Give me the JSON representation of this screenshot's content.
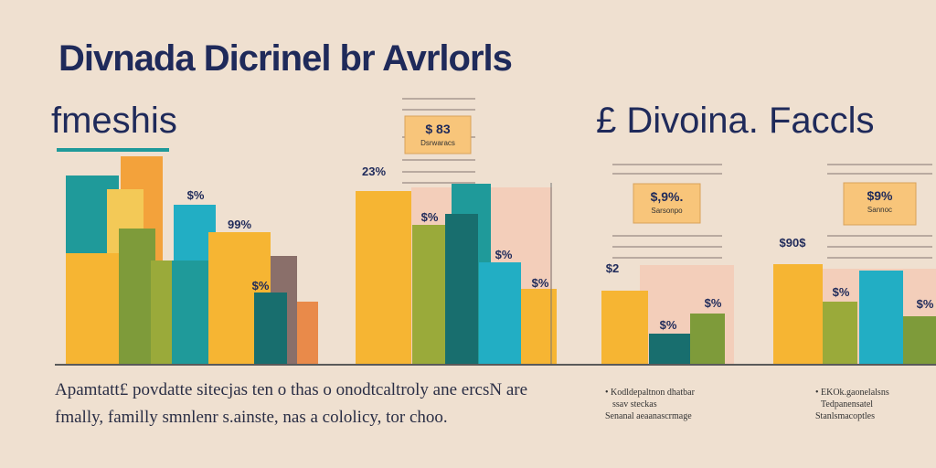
{
  "header": {
    "title": "Divnada Dicrinel br Avrlorls",
    "subtitle_left": "fmeshis",
    "subtitle_right": "£ Divoina. Faccls"
  },
  "description": [
    "Apamtatt£ povdatte sitecjas ten o thas o onodtcaltroly ane ercsN are",
    "fmally, familly smnlenr s.ainste, nas a cololicy, tor choo."
  ],
  "legends": [
    [
      "• Kodldepaltnon dhatbar",
      "ssav steckas",
      "Senanal aeaanascrmage"
    ],
    [
      "• EKOk.gaonelalsns",
      "Tedpanensatel",
      "Stanlsmacoptles"
    ]
  ],
  "chart_data": {
    "type": "bar",
    "title": "Divnada Dicrinel br Avrlorls",
    "ylim": [
      0,
      240
    ],
    "baseline_label": "",
    "colors": {
      "yellow": "#f6b533",
      "lightyellow": "#f3c957",
      "orange": "#f3a23b",
      "teal": "#1f9a9a",
      "darkteal": "#186e6e",
      "cyan": "#22aec4",
      "olive": "#9aaa3a",
      "green": "#7e9b3a",
      "pink": "#f4c9b4",
      "grey": "#8a6f6a",
      "red": "#e98a4a"
    },
    "bars": [
      {
        "group": 1,
        "color": "teal",
        "value": 206
      },
      {
        "group": 1,
        "color": "orange",
        "value": 227
      },
      {
        "group": 1,
        "color": "lightyellow",
        "value": 191
      },
      {
        "group": 1,
        "color": "yellow",
        "value": 121
      },
      {
        "group": 1,
        "color": "green",
        "value": 148
      },
      {
        "group": 1,
        "color": "olive",
        "value": 113
      },
      {
        "group": 1,
        "color": "cyan",
        "value": 174
      },
      {
        "group": 1,
        "color": "teal",
        "value": 113
      },
      {
        "group": 1,
        "color": "grey",
        "value": 118
      },
      {
        "group": 1,
        "color": "red",
        "value": 68
      },
      {
        "group": 1,
        "color": "yellow",
        "value": 144
      },
      {
        "group": 1,
        "color": "darkteal",
        "value": 78
      },
      {
        "group": 2,
        "color": "pink",
        "value": 193
      },
      {
        "group": 2,
        "color": "yellow",
        "value": 189
      },
      {
        "group": 2,
        "color": "teal",
        "value": 197
      },
      {
        "group": 2,
        "color": "olive",
        "value": 152
      },
      {
        "group": 2,
        "color": "darkteal",
        "value": 164
      },
      {
        "group": 2,
        "color": "cyan",
        "value": 111
      },
      {
        "group": 2,
        "color": "yellow",
        "value": 82
      },
      {
        "group": 3,
        "color": "pink",
        "value": 108
      },
      {
        "group": 3,
        "color": "yellow",
        "value": 80
      },
      {
        "group": 3,
        "color": "darkteal",
        "value": 33
      },
      {
        "group": 3,
        "color": "green",
        "value": 55
      },
      {
        "group": 4,
        "color": "pink",
        "value": 104
      },
      {
        "group": 4,
        "color": "yellow",
        "value": 109
      },
      {
        "group": 4,
        "color": "olive",
        "value": 68
      },
      {
        "group": 4,
        "color": "cyan",
        "value": 102
      },
      {
        "group": 4,
        "color": "green",
        "value": 52
      }
    ],
    "data_labels": [
      "$%",
      "99%",
      "$%",
      "23%",
      "$%",
      "$%",
      "$%",
      "$2",
      "$%",
      "$%",
      "$90$",
      "$%",
      "$%"
    ],
    "callouts": [
      {
        "value": "$ 83",
        "caption": "Dsrwaracs"
      },
      {
        "value": "$,9%.",
        "caption": "Sarsonpo"
      },
      {
        "value": "$9%",
        "caption": "Sannoc"
      }
    ]
  }
}
